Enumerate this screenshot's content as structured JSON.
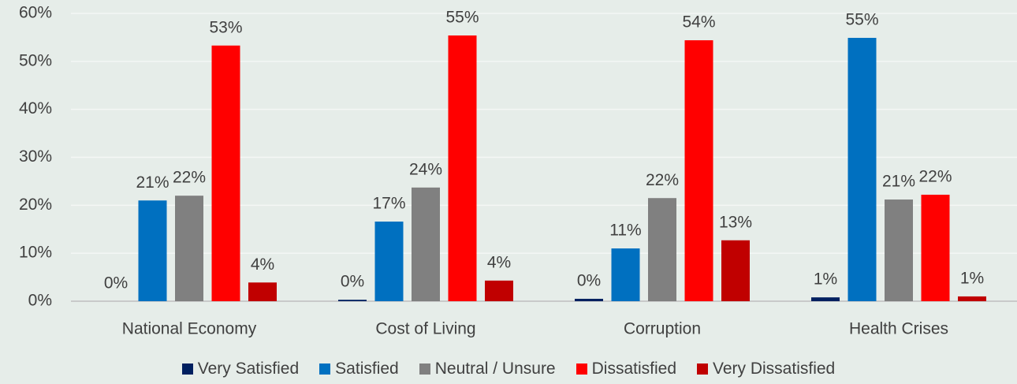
{
  "chart_data": {
    "type": "bar",
    "categories": [
      "National Economy",
      "Cost of Living",
      "Corruption",
      "Health Crises"
    ],
    "series": [
      {
        "name": "Very Satisfied",
        "color": "#002060",
        "values": [
          0,
          0.3,
          0.5,
          0.8
        ],
        "value_labels": [
          "0%",
          "0%",
          "0%",
          "1%"
        ]
      },
      {
        "name": "Satisfied",
        "color": "#0070c0",
        "values": [
          21,
          16.6,
          11,
          54.9
        ],
        "value_labels": [
          "21%",
          "17%",
          "11%",
          "55%"
        ]
      },
      {
        "name": "Neutral / Unsure",
        "color": "#808080",
        "values": [
          22,
          23.7,
          21.5,
          21.2
        ],
        "value_labels": [
          "22%",
          "24%",
          "22%",
          "21%"
        ]
      },
      {
        "name": "Dissatisfied",
        "color": "#ff0000",
        "values": [
          53.3,
          55.4,
          54.4,
          22.2
        ],
        "value_labels": [
          "53%",
          "55%",
          "54%",
          "22%"
        ]
      },
      {
        "name": "Very Dissatisfied",
        "color": "#c00000",
        "values": [
          3.9,
          4.3,
          12.7,
          1
        ],
        "value_labels": [
          "4%",
          "4%",
          "13%",
          "1%"
        ]
      }
    ],
    "ylim": [
      0,
      60
    ],
    "yticks": [
      {
        "value": 0,
        "label": "0%"
      },
      {
        "value": 10,
        "label": "10%"
      },
      {
        "value": 20,
        "label": "20%"
      },
      {
        "value": 30,
        "label": "30%"
      },
      {
        "value": 40,
        "label": "40%"
      },
      {
        "value": 50,
        "label": "50%"
      },
      {
        "value": 60,
        "label": "60%"
      }
    ],
    "grid": true,
    "legend": "bottom"
  }
}
